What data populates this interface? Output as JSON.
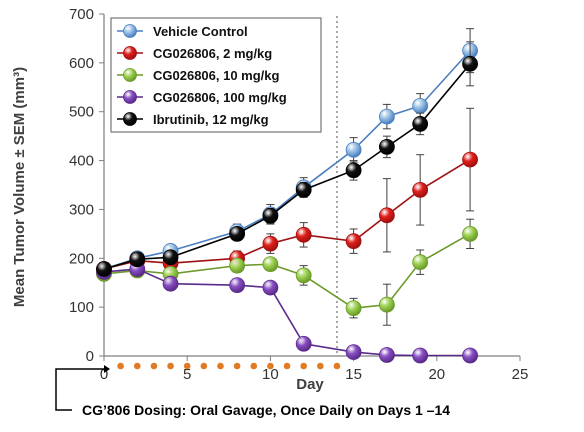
{
  "chart_data": {
    "type": "line",
    "xlabel": "Day",
    "ylabel": "Mean Tumor Volume ± SEM (mm³)",
    "xlim": [
      0,
      25
    ],
    "ylim": [
      0,
      700
    ],
    "xticks": [
      0,
      5,
      10,
      15,
      20,
      25
    ],
    "yticks": [
      0,
      100,
      200,
      300,
      400,
      500,
      600,
      700
    ],
    "grid": false,
    "legend_position": "top-left",
    "reference_line_x": 14,
    "dosing_days": [
      1,
      2,
      3,
      4,
      5,
      6,
      7,
      8,
      9,
      10,
      11,
      12,
      13,
      14
    ],
    "dosing_color": "#e07b24",
    "annotation": "CG’806 Dosing: Oral Gavage, Once Daily on Days 1 –14",
    "series": [
      {
        "name": "Vehicle Control",
        "color": "#9dc3e6",
        "stroke": "#4a7fbf",
        "x": [
          0,
          2,
          4,
          8,
          10,
          12,
          15,
          17,
          19,
          22
        ],
        "y": [
          178,
          200,
          215,
          255,
          290,
          345,
          422,
          490,
          512,
          625
        ],
        "err": [
          10,
          10,
          12,
          15,
          20,
          20,
          25,
          25,
          25,
          45
        ]
      },
      {
        "name": "CG026806, 2 mg/kg",
        "color": "#e0201b",
        "stroke": "#a01010",
        "x": [
          0,
          2,
          4,
          8,
          10,
          12,
          15,
          17,
          19,
          22
        ],
        "y": [
          178,
          195,
          190,
          200,
          230,
          248,
          235,
          288,
          340,
          402
        ],
        "err": [
          10,
          10,
          12,
          15,
          20,
          25,
          25,
          75,
          72,
          105
        ]
      },
      {
        "name": "CG026806, 10 mg/kg",
        "color": "#9fd453",
        "stroke": "#6a9a2a",
        "x": [
          0,
          2,
          4,
          8,
          10,
          12,
          15,
          17,
          19,
          22
        ],
        "y": [
          168,
          175,
          168,
          185,
          188,
          165,
          98,
          105,
          192,
          250
        ],
        "err": [
          8,
          8,
          10,
          10,
          12,
          20,
          20,
          42,
          25,
          30
        ]
      },
      {
        "name": "CG026806, 100 mg/kg",
        "color": "#8a4fc4",
        "stroke": "#5a2a8a",
        "x": [
          0,
          2,
          4,
          8,
          10,
          12,
          15,
          17,
          19,
          22
        ],
        "y": [
          172,
          178,
          148,
          145,
          140,
          25,
          8,
          2,
          1,
          1
        ],
        "err": [
          5,
          5,
          5,
          5,
          5,
          5,
          3,
          1,
          1,
          1
        ]
      },
      {
        "name": "Ibrutinib, 12 mg/kg",
        "color": "#111111",
        "stroke": "#000000",
        "x": [
          0,
          2,
          4,
          8,
          10,
          12,
          15,
          17,
          19,
          22
        ],
        "y": [
          178,
          198,
          202,
          250,
          287,
          340,
          380,
          428,
          475,
          598
        ],
        "err": [
          8,
          8,
          10,
          12,
          15,
          15,
          20,
          22,
          22,
          45
        ]
      }
    ]
  }
}
